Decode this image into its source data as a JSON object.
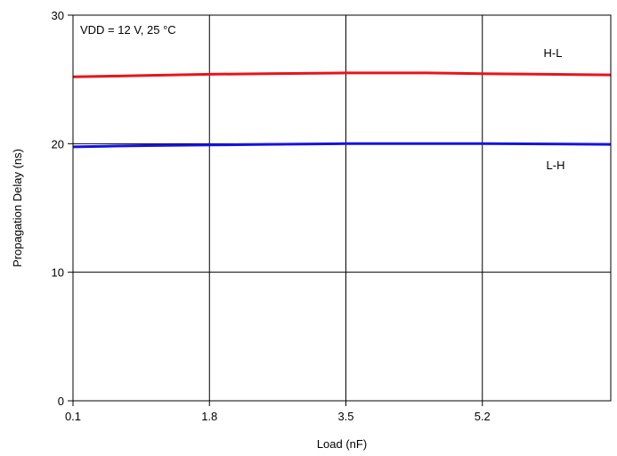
{
  "chart_data": {
    "type": "line",
    "title": "",
    "xlabel": "Load (nF)",
    "ylabel": "Propagation Delay (ns)",
    "annotation": "VDD = 12 V, 25 °C",
    "xlim": [
      0.1,
      6.8
    ],
    "ylim": [
      0,
      30
    ],
    "x_ticks": [
      0.1,
      1.8,
      3.5,
      5.2
    ],
    "x_tick_labels": [
      "0.1",
      "1.8",
      "3.5",
      "5.2"
    ],
    "y_ticks": [
      0,
      10,
      20,
      30
    ],
    "y_tick_labels": [
      "0",
      "10",
      "20",
      "30"
    ],
    "grid": true,
    "series": [
      {
        "name": "H-L",
        "color": "#e8141c",
        "x": [
          0.1,
          0.5,
          1.0,
          1.8,
          2.5,
          3.5,
          4.5,
          5.2,
          6.0,
          6.8
        ],
        "y": [
          25.2,
          25.25,
          25.3,
          25.4,
          25.45,
          25.5,
          25.5,
          25.45,
          25.4,
          25.35
        ]
      },
      {
        "name": "L-H",
        "color": "#1414e0",
        "x": [
          0.1,
          0.5,
          1.0,
          1.8,
          2.5,
          3.5,
          4.5,
          5.2,
          6.0,
          6.8
        ],
        "y": [
          19.75,
          19.8,
          19.85,
          19.9,
          19.95,
          20.0,
          20.0,
          20.0,
          19.98,
          19.95
        ]
      }
    ]
  }
}
